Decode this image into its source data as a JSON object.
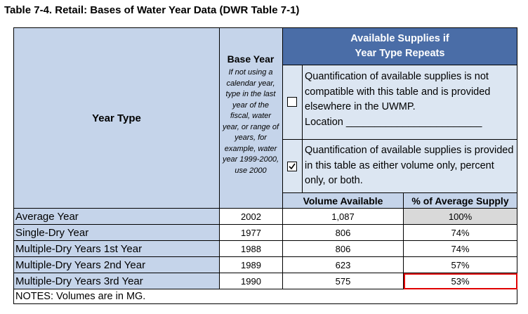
{
  "title": "Table 7-4. Retail: Bases of Water Year Data (DWR Table 7-1)",
  "headers": {
    "year_type": "Year Type",
    "base_year": "Base Year",
    "base_year_note": "If not using a calendar year, type in the last year of the fiscal,  water year, or range of years, for example, water year 1999-2000, use 2000",
    "available_line1": "Available Supplies if",
    "available_line2": "Year Type Repeats",
    "option1_text": "Quantification of available supplies is not compatible with this table and is provided elsewhere in the UWMP.",
    "option1_location": "Location ________________________",
    "option1_checked": false,
    "option2_text": "Quantification of available supplies is provided in this table as either volume only, percent only, or both.",
    "option2_checked": true,
    "volume_available": "Volume Available",
    "pct_average": "% of Average Supply"
  },
  "rows": [
    {
      "type": "Average Year",
      "year": "2002",
      "volume": "1,087",
      "pct": "100%"
    },
    {
      "type": "Single-Dry Year",
      "year": "1977",
      "volume": "806",
      "pct": "74%"
    },
    {
      "type": "Multiple-Dry Years 1st Year",
      "year": "1988",
      "volume": "806",
      "pct": "74%"
    },
    {
      "type": "Multiple-Dry Years 2nd Year",
      "year": "1989",
      "volume": "623",
      "pct": "57%"
    },
    {
      "type": "Multiple-Dry Years 3rd Year",
      "year": "1990",
      "volume": "575",
      "pct": "53%"
    }
  ],
  "notes": "NOTES: Volumes are in MG.",
  "colors": {
    "header": "#c5d4ea",
    "subheader": "#dce6f2",
    "highlight": "#e00000",
    "gray": "#d9d9d9"
  }
}
